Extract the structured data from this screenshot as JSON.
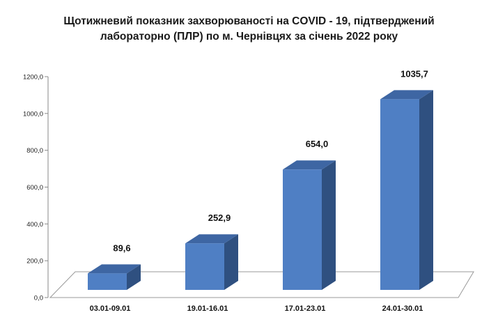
{
  "chart_data": {
    "type": "bar",
    "title_lines": [
      "Щотижневий показник захворюваності на COVID - 19, підтверджений",
      "лабораторно (ПЛР) по м. Чернівцях за січень 2022 року"
    ],
    "categories": [
      "03.01-09.01",
      "19.01-16.01",
      "17.01-23.01",
      "24.01-30.01"
    ],
    "values": [
      89.6,
      252.9,
      654.0,
      1035.7
    ],
    "data_labels": [
      "89,6",
      "252,9",
      "654,0",
      "1035,7"
    ],
    "yticks": [
      0,
      200,
      400,
      600,
      800,
      1000,
      1200
    ],
    "ytick_labels": [
      "0,0",
      "200,0",
      "400,0",
      "600,0",
      "800,0",
      "1000,0",
      "1200,0"
    ],
    "ylim": [
      0,
      1200
    ],
    "xlabel": "",
    "ylabel": "",
    "grid": false,
    "legend": "none",
    "style": "3d-column",
    "colors": {
      "bar_front": "#4f7fc4",
      "bar_side": "#2f5080",
      "bar_top": "#3e66a3",
      "floor": "#ffffff",
      "floor_edge": "#999999"
    }
  }
}
